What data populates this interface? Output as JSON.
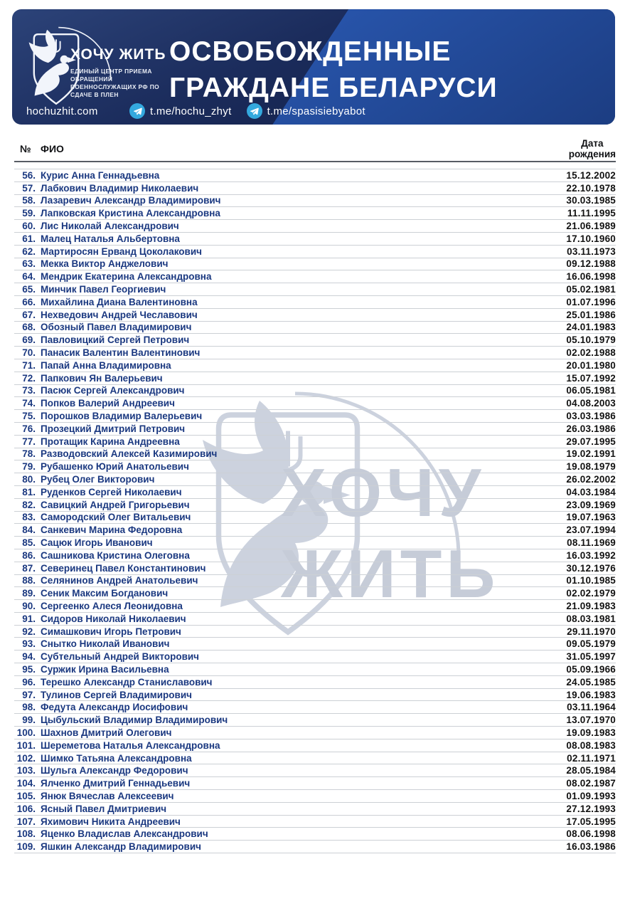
{
  "header": {
    "logo": {
      "brand": "ХОЧУ ЖИТЬ",
      "subtitle": "ЕДИНЫЙ ЦЕНТР ПРИЕМА ОБРАЩЕНИЙ ВОЕННОСЛУЖАЩИХ РФ ПО СДАЧЕ В ПЛЕН"
    },
    "title_line1": "ОСВОБОЖДЕННЫЕ",
    "title_line2": "ГРАЖДАНЕ БЕЛАРУСИ",
    "links": {
      "website": "hochuzhit.com",
      "telegram_channel": "t.me/hochu_zhyt",
      "telegram_bot": "t.me/spasisiebyabot"
    }
  },
  "watermark": {
    "line1": "ХОЧУ",
    "line2": "ЖИТЬ"
  },
  "colors": {
    "banner_dark_navy": "#16254f",
    "banner_light_blue": "#2a55a9",
    "telegram_blue": "#34a9de",
    "name_text": "#1a3880",
    "date_text": "#121212",
    "watermark_gray": "#c6ccd8"
  },
  "table": {
    "header": {
      "number": "№",
      "name": "ФИО",
      "dob_line1": "Дата",
      "dob_line2": "рождения"
    },
    "rows": [
      {
        "n": "56.",
        "name": "Курис Анна Геннадьевна",
        "dob": "15.12.2002"
      },
      {
        "n": "57.",
        "name": "Лабкович Владимир Николаевич",
        "dob": "22.10.1978"
      },
      {
        "n": "58.",
        "name": "Лазаревич Александр Владимирович",
        "dob": "30.03.1985"
      },
      {
        "n": "59.",
        "name": "Лапковская Кристина Александровна",
        "dob": "11.11.1995"
      },
      {
        "n": "60.",
        "name": "Лис Николай Александрович",
        "dob": "21.06.1989"
      },
      {
        "n": "61.",
        "name": "Малец Наталья Альбертовна",
        "dob": "17.10.1960"
      },
      {
        "n": "62.",
        "name": "Мартиросян Ерванд Цоколакович",
        "dob": "03.11.1973"
      },
      {
        "n": "63.",
        "name": "Мекка Виктор Анджелович",
        "dob": "09.12.1988"
      },
      {
        "n": "64.",
        "name": "Мендрик Екатерина Александровна",
        "dob": "16.06.1998"
      },
      {
        "n": "65.",
        "name": "Минчик Павел Георгиевич",
        "dob": "05.02.1981"
      },
      {
        "n": "66.",
        "name": "Михайлина Диана Валентиновна",
        "dob": "01.07.1996"
      },
      {
        "n": "67.",
        "name": "Нехведович Андрей Чеславович",
        "dob": "25.01.1986"
      },
      {
        "n": "68.",
        "name": "Обозный Павел Владимирович",
        "dob": "24.01.1983"
      },
      {
        "n": "69.",
        "name": "Павловицкий Сергей Петрович",
        "dob": "05.10.1979"
      },
      {
        "n": "70.",
        "name": "Панасик Валентин Валентинович",
        "dob": "02.02.1988"
      },
      {
        "n": "71.",
        "name": "Папай Анна Владимировна",
        "dob": "20.01.1980"
      },
      {
        "n": "72.",
        "name": "Папкович Ян Валерьевич",
        "dob": "15.07.1992"
      },
      {
        "n": "73.",
        "name": "Пасюк Сергей Александрович",
        "dob": "06.05.1981"
      },
      {
        "n": "74.",
        "name": "Попков Валерий Андреевич",
        "dob": "04.08.2003"
      },
      {
        "n": "75.",
        "name": "Порошков Владимир Валерьевич",
        "dob": "03.03.1986"
      },
      {
        "n": "76.",
        "name": "Прозецкий Дмитрий Петрович",
        "dob": "26.03.1986"
      },
      {
        "n": "77.",
        "name": "Протащик Карина Андреевна",
        "dob": "29.07.1995"
      },
      {
        "n": "78.",
        "name": "Разводовский Алексей Казимирович",
        "dob": "19.02.1991"
      },
      {
        "n": "79.",
        "name": "Рубашенко Юрий Анатольевич",
        "dob": "19.08.1979"
      },
      {
        "n": "80.",
        "name": "Рубец Олег Викторович",
        "dob": "26.02.2002"
      },
      {
        "n": "81.",
        "name": "Руденков Сергей Николаевич",
        "dob": "04.03.1984"
      },
      {
        "n": "82.",
        "name": "Савицкий Андрей Григорьевич",
        "dob": "23.09.1969"
      },
      {
        "n": "83.",
        "name": "Самородский Олег Витальевич",
        "dob": "19.07.1963"
      },
      {
        "n": "84.",
        "name": "Санкевич Марина Федоровна",
        "dob": "23.07.1994"
      },
      {
        "n": "85.",
        "name": "Сацюк Игорь Иванович",
        "dob": "08.11.1969"
      },
      {
        "n": "86.",
        "name": "Сашникова Кристина Олеговна",
        "dob": "16.03.1992"
      },
      {
        "n": "87.",
        "name": "Северинец Павел Константинович",
        "dob": "30.12.1976"
      },
      {
        "n": "88.",
        "name": "Селянинов Андрей Анатольевич",
        "dob": "01.10.1985"
      },
      {
        "n": "89.",
        "name": "Сеник Максим Богданович",
        "dob": "02.02.1979"
      },
      {
        "n": "90.",
        "name": "Сергеенко Алеся Леонидовна",
        "dob": "21.09.1983"
      },
      {
        "n": "91.",
        "name": "Сидоров Николай Николаевич",
        "dob": "08.03.1981"
      },
      {
        "n": "92.",
        "name": "Симашкович Игорь Петрович",
        "dob": "29.11.1970"
      },
      {
        "n": "93.",
        "name": "Снытко Николай Иванович",
        "dob": "09.05.1979"
      },
      {
        "n": "94.",
        "name": "Субтельный Андрей Викторович",
        "dob": "31.05.1997"
      },
      {
        "n": "95.",
        "name": "Суржик Ирина Васильевна",
        "dob": "05.09.1966"
      },
      {
        "n": "96.",
        "name": "Терешко Александр Станиславович",
        "dob": "24.05.1985"
      },
      {
        "n": "97.",
        "name": "Тулинов Сергей Владимирович",
        "dob": "19.06.1983"
      },
      {
        "n": "98.",
        "name": "Федута Александр Иосифович",
        "dob": "03.11.1964"
      },
      {
        "n": "99.",
        "name": "Цыбульский Владимир Владимирович",
        "dob": "13.07.1970"
      },
      {
        "n": "100.",
        "name": "Шахнов Дмитрий Олегович",
        "dob": "19.09.1983"
      },
      {
        "n": "101.",
        "name": "Шереметова Наталья Александровна",
        "dob": "08.08.1983"
      },
      {
        "n": "102.",
        "name": "Шимко Татьяна Александровна",
        "dob": "02.11.1971"
      },
      {
        "n": "103.",
        "name": "Шульга Александр Федорович",
        "dob": "28.05.1984"
      },
      {
        "n": "104.",
        "name": "Ялченко Дмитрий Геннадьевич",
        "dob": "08.02.1987"
      },
      {
        "n": "105.",
        "name": "Янюк Вячеслав Алексеевич",
        "dob": "01.09.1993"
      },
      {
        "n": "106.",
        "name": "Ясный Павел Дмитриевич",
        "dob": "27.12.1993"
      },
      {
        "n": "107.",
        "name": "Яхимович Никита Андреевич",
        "dob": "17.05.1995"
      },
      {
        "n": "108.",
        "name": "Яценко Владислав Александрович",
        "dob": "08.06.1998"
      },
      {
        "n": "109.",
        "name": "Яшкин Александр Владимирович",
        "dob": "16.03.1986"
      }
    ]
  }
}
